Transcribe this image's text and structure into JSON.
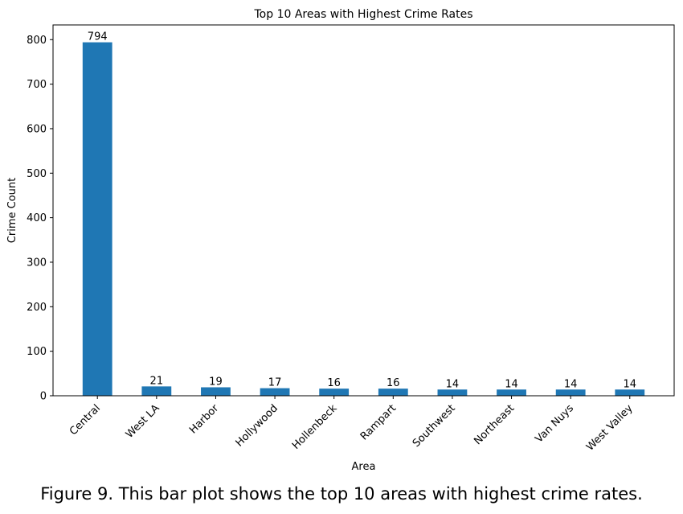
{
  "chart_data": {
    "type": "bar",
    "title": "Top 10 Areas with Highest Crime Rates",
    "xlabel": "Area",
    "ylabel": "Crime Count",
    "categories": [
      "Central",
      "West LA",
      "Harbor",
      "Hollywood",
      "Hollenbeck",
      "Rampart",
      "Southwest",
      "Northeast",
      "Van Nuys",
      "West Valley"
    ],
    "values": [
      794,
      21,
      19,
      17,
      16,
      16,
      14,
      14,
      14,
      14
    ],
    "ylim": [
      0,
      833
    ],
    "yticks": [
      0,
      100,
      200,
      300,
      400,
      500,
      600,
      700,
      800
    ],
    "bar_color": "#1f77b4",
    "grid": false,
    "legend": false
  },
  "caption": "Figure 9. This bar plot shows the top 10 areas with highest crime rates."
}
